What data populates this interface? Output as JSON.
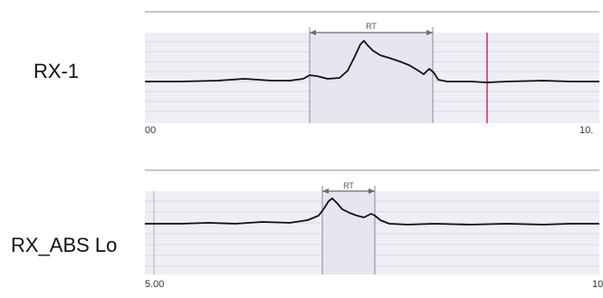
{
  "channels": [
    {
      "label": "RX-1",
      "rt_label": "RT",
      "axis_ticks": {
        "start": "00",
        "end": "10."
      }
    },
    {
      "label": "RX_ABS Lo",
      "rt_label": "RT",
      "axis_ticks": {
        "start": "5.00",
        "end": "10"
      }
    }
  ],
  "colors": {
    "trace": "#111111",
    "grid": "#d8d8e4",
    "band": "#eeeef5",
    "rt_window": "#e4e4ee",
    "rt_bracket": "#6a6a7a",
    "cursor": "#e0207a",
    "border": "#8c8c8c"
  }
}
